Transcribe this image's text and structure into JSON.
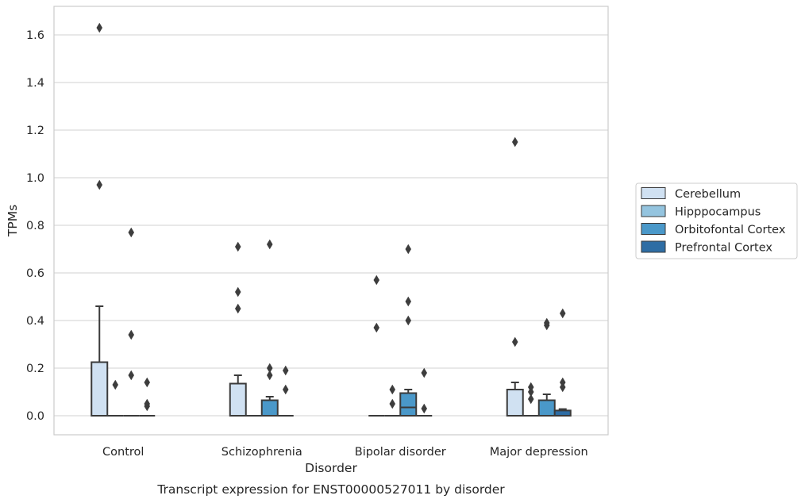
{
  "chart_data": {
    "type": "box",
    "title": "",
    "caption": "Transcript expression for ENST00000527011 by disorder",
    "xlabel": "Disorder",
    "ylabel": "TPMs",
    "ylim": [
      -0.08,
      1.72
    ],
    "yticks": [
      "0.0",
      "0.2",
      "0.4",
      "0.6",
      "0.8",
      "1.0",
      "1.2",
      "1.4",
      "1.6"
    ],
    "categories": [
      "Control",
      "Schizophrenia",
      "Bipolar disorder",
      "Major depression"
    ],
    "grid": "horizontal",
    "legend_position": "right",
    "series": [
      {
        "name": "Cerebellum",
        "color": "#d0e1f2",
        "boxes": [
          {
            "q1": 0,
            "median": 0,
            "q3": 0.225,
            "whisker_low": 0,
            "whisker_high": 0.46,
            "outliers": [
              0.97,
              1.63
            ]
          },
          {
            "q1": 0,
            "median": 0,
            "q3": 0.135,
            "whisker_low": 0,
            "whisker_high": 0.17,
            "outliers": [
              0.45,
              0.52,
              0.71
            ]
          },
          {
            "q1": 0,
            "median": 0,
            "q3": 0,
            "whisker_low": 0,
            "whisker_high": 0,
            "outliers": [
              0.37,
              0.57
            ]
          },
          {
            "q1": 0,
            "median": 0,
            "q3": 0.11,
            "whisker_low": 0,
            "whisker_high": 0.14,
            "outliers": [
              0.31,
              1.15
            ]
          }
        ]
      },
      {
        "name": "Hipppocampus",
        "color": "#94c4df",
        "boxes": [
          {
            "q1": 0,
            "median": 0,
            "q3": 0,
            "whisker_low": 0,
            "whisker_high": 0,
            "outliers": [
              0.13
            ]
          },
          {
            "q1": 0,
            "median": 0,
            "q3": 0,
            "whisker_low": 0,
            "whisker_high": 0,
            "outliers": []
          },
          {
            "q1": 0,
            "median": 0,
            "q3": 0,
            "whisker_low": 0,
            "whisker_high": 0,
            "outliers": [
              0.05,
              0.11
            ]
          },
          {
            "q1": 0,
            "median": 0,
            "q3": 0,
            "whisker_low": 0,
            "whisker_high": 0,
            "outliers": [
              0.07,
              0.1,
              0.12
            ]
          }
        ]
      },
      {
        "name": "Orbitofontal Cortex",
        "color": "#4a98c9",
        "boxes": [
          {
            "q1": 0,
            "median": 0,
            "q3": 0,
            "whisker_low": 0,
            "whisker_high": 0,
            "outliers": [
              0.17,
              0.34,
              0.77
            ]
          },
          {
            "q1": 0,
            "median": 0,
            "q3": 0.065,
            "whisker_low": 0,
            "whisker_high": 0.08,
            "outliers": [
              0.17,
              0.2,
              0.72
            ]
          },
          {
            "q1": 0,
            "median": 0.035,
            "q3": 0.095,
            "whisker_low": 0,
            "whisker_high": 0.11,
            "outliers": [
              0.4,
              0.48,
              0.7
            ]
          },
          {
            "q1": 0,
            "median": 0,
            "q3": 0.065,
            "whisker_low": 0,
            "whisker_high": 0.09,
            "outliers": [
              0.38,
              0.39
            ]
          }
        ]
      },
      {
        "name": "Prefrontal Cortex",
        "color": "#2e6da4",
        "boxes": [
          {
            "q1": 0,
            "median": 0,
            "q3": 0,
            "whisker_low": 0,
            "whisker_high": 0,
            "outliers": [
              0.04,
              0.05,
              0.14
            ]
          },
          {
            "q1": 0,
            "median": 0,
            "q3": 0,
            "whisker_low": 0,
            "whisker_high": 0,
            "outliers": [
              0.11,
              0.19
            ]
          },
          {
            "q1": 0,
            "median": 0,
            "q3": 0,
            "whisker_low": 0,
            "whisker_high": 0,
            "outliers": [
              0.03,
              0.18
            ]
          },
          {
            "q1": 0,
            "median": 0,
            "q3": 0.022,
            "whisker_low": 0,
            "whisker_high": 0.028,
            "outliers": [
              0.12,
              0.14,
              0.43
            ]
          }
        ]
      }
    ]
  }
}
